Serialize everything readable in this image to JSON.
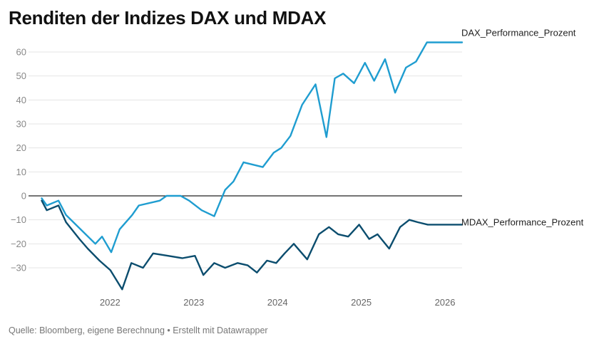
{
  "title": "Renditen der Indizes DAX und MDAX",
  "footer": "Quelle: Bloomberg, eigene Berechnung • Erstellt mit Datawrapper",
  "chart_data": {
    "type": "line",
    "title": "Renditen der Indizes DAX und MDAX",
    "xlabel": "",
    "ylabel": "",
    "y_ticks": [
      60,
      50,
      40,
      30,
      20,
      10,
      0,
      -10,
      -20,
      -30
    ],
    "y_tick_labels": [
      "60",
      "50",
      "40",
      "30",
      "20",
      "10",
      "0",
      "−10",
      "−20",
      "−30"
    ],
    "ylim": [
      -40,
      65
    ],
    "x_tick_labels": [
      "2022",
      "2023",
      "2024",
      "2025",
      "2026"
    ],
    "x_ticks": [
      2022.0,
      2023.0,
      2024.0,
      2025.0,
      2026.0
    ],
    "xlim": [
      2021.62,
      2026.67
    ],
    "grid": true,
    "legend": "labels at line ends (right)",
    "series": [
      {
        "name": "DAX_Performance_Prozent",
        "color": "#1f9dd0",
        "x": [
          2021.65,
          2021.71,
          2021.85,
          2021.94,
          2022.29,
          2022.37,
          2022.48,
          2022.58,
          2022.73,
          2022.81,
          2023.06,
          2023.14,
          2023.25,
          2023.31,
          2023.41,
          2023.56,
          2023.71,
          2023.84,
          2023.94,
          2024.06,
          2024.29,
          2024.42,
          2024.51,
          2024.62,
          2024.76,
          2024.92,
          2025.05,
          2025.15,
          2025.25,
          2025.38,
          2025.51,
          2025.62,
          2025.75,
          2025.87,
          2026.0,
          2026.12,
          2026.25,
          2026.38,
          2026.48,
          2026.58,
          2026.67
        ],
        "values": [
          -1,
          -4,
          -2,
          -8,
          -20,
          -17,
          -23.5,
          -14,
          -8,
          -4,
          -2,
          0,
          0,
          0,
          -2,
          -6,
          -8.5,
          2.5,
          6,
          14,
          12,
          18,
          20,
          25,
          38,
          46.5,
          24.5,
          49,
          51,
          47,
          55.5,
          48,
          57,
          43,
          53.5,
          56,
          64,
          64,
          64,
          64,
          64
        ]
      },
      {
        "name": "MDAX_Performance_Prozent",
        "color": "#0b4d6e",
        "x": [
          2021.65,
          2021.71,
          2021.85,
          2021.94,
          2022.1,
          2022.2,
          2022.34,
          2022.47,
          2022.61,
          2022.72,
          2022.86,
          2022.98,
          2023.16,
          2023.33,
          2023.48,
          2023.58,
          2023.71,
          2023.84,
          2023.99,
          2024.11,
          2024.22,
          2024.34,
          2024.45,
          2024.55,
          2024.66,
          2024.82,
          2024.96,
          2025.08,
          2025.19,
          2025.31,
          2025.44,
          2025.56,
          2025.66,
          2025.8,
          2025.93,
          2026.04,
          2026.14,
          2026.26,
          2026.37,
          2026.48,
          2026.58,
          2026.67
        ],
        "values": [
          -2,
          -6,
          -4,
          -11,
          -18,
          -22,
          -27,
          -31,
          -39,
          -28,
          -30,
          -24,
          -25,
          -26,
          -25,
          -33,
          -28,
          -30,
          -28,
          -29,
          -32,
          -27,
          -28,
          -24,
          -20,
          -26.5,
          -16,
          -13,
          -16,
          -17,
          -12,
          -18,
          -16,
          -22,
          -13,
          -10,
          -11,
          -12,
          -12,
          -12,
          -12,
          -12
        ]
      }
    ]
  }
}
